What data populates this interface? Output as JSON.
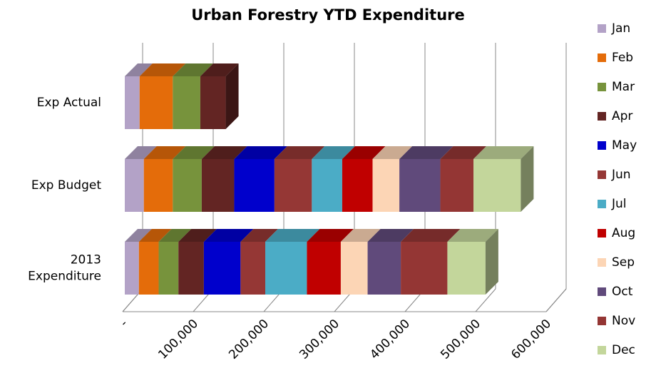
{
  "chart_data": {
    "type": "bar3d_stacked_horizontal",
    "title": "Urban Forestry YTD Expenditure",
    "categories": [
      "Exp Actual",
      "Exp Budget",
      "2013 Expenditure"
    ],
    "series": [
      {
        "name": "Jan",
        "color": "#b3a2c7",
        "values": [
          21000,
          27000,
          20000
        ]
      },
      {
        "name": "Feb",
        "color": "#e46c0a",
        "values": [
          47000,
          41000,
          28000
        ]
      },
      {
        "name": "Mar",
        "color": "#77933c",
        "values": [
          39000,
          41000,
          28000
        ]
      },
      {
        "name": "Apr",
        "color": "#632523",
        "values": [
          36000,
          46000,
          36000
        ]
      },
      {
        "name": "May",
        "color": "#0000cc",
        "values": [
          null,
          57000,
          52000
        ]
      },
      {
        "name": "Jun",
        "color": "#953735",
        "values": [
          null,
          53000,
          35000
        ]
      },
      {
        "name": "Jul",
        "color": "#4bacc6",
        "values": [
          null,
          43000,
          59000
        ]
      },
      {
        "name": "Aug",
        "color": "#c00000",
        "values": [
          null,
          43000,
          48000
        ]
      },
      {
        "name": "Sep",
        "color": "#fcd5b5",
        "values": [
          null,
          38000,
          38000
        ]
      },
      {
        "name": "Oct",
        "color": "#604a7b",
        "values": [
          null,
          58000,
          47000
        ]
      },
      {
        "name": "Nov",
        "color": "#943634",
        "values": [
          null,
          47000,
          66000
        ]
      },
      {
        "name": "Dec",
        "color": "#c3d69b",
        "values": [
          null,
          67000,
          54000
        ]
      }
    ],
    "xlim": [
      0,
      600000
    ],
    "xticks": [
      {
        "value": 0,
        "label": "-"
      },
      {
        "value": 100000,
        "label": "100,000"
      },
      {
        "value": 200000,
        "label": "200,000"
      },
      {
        "value": 300000,
        "label": "300,000"
      },
      {
        "value": 400000,
        "label": "400,000"
      },
      {
        "value": 500000,
        "label": "500,000"
      },
      {
        "value": 600000,
        "label": "600,000"
      }
    ],
    "grid": true,
    "legend": "right"
  }
}
